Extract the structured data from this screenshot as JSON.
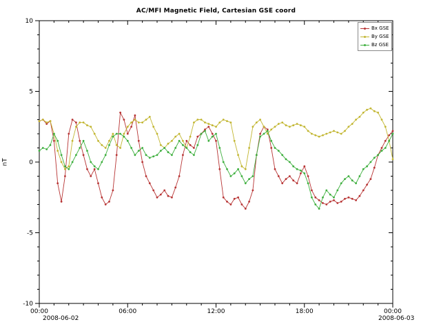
{
  "page": {
    "background": "#ffffff"
  },
  "chart_data": {
    "type": "line",
    "title": "AC/MFI  Magnetic Field, Cartesian GSE coord",
    "xlabel": "",
    "ylabel": "nT",
    "x_start_label": "2008-06-02",
    "x_end_label": "2008-06-03",
    "xlim": [
      0,
      24
    ],
    "ylim": [
      -10,
      10
    ],
    "grid": false,
    "legend_position": "top-right",
    "xticks": {
      "major_hours": [
        0,
        6,
        12,
        18,
        24
      ],
      "labels": [
        "00:00",
        "06:00",
        "12:00",
        "18:00",
        "00:00"
      ],
      "minor_every_hours": 1
    },
    "yticks": {
      "major": [
        -10,
        -5,
        0,
        5,
        10
      ],
      "minor_every": 1
    },
    "x_step_hours": 0.25,
    "series": [
      {
        "name": "Bx GSE",
        "color": "#b73333",
        "values": [
          2.9,
          3.0,
          2.7,
          2.9,
          1.5,
          -1.5,
          -2.8,
          -1.0,
          2.0,
          3.0,
          2.8,
          1.5,
          0.5,
          -0.5,
          -1.0,
          -0.5,
          -1.5,
          -2.5,
          -3.0,
          -2.8,
          -2.0,
          0.5,
          3.5,
          3.0,
          2.0,
          2.5,
          3.3,
          1.5,
          0.0,
          -1.0,
          -1.5,
          -2.0,
          -2.5,
          -2.3,
          -2.0,
          -2.4,
          -2.5,
          -1.8,
          -1.0,
          0.5,
          1.5,
          1.2,
          1.0,
          1.8,
          2.0,
          2.3,
          2.5,
          2.0,
          1.5,
          -0.5,
          -2.5,
          -2.8,
          -3.0,
          -2.6,
          -2.5,
          -3.0,
          -3.3,
          -2.8,
          -2.0,
          0.5,
          2.0,
          2.5,
          2.3,
          1.0,
          -0.5,
          -1.0,
          -1.5,
          -1.2,
          -1.0,
          -1.3,
          -1.5,
          -0.8,
          -0.3,
          -1.0,
          -2.0,
          -2.5,
          -2.7,
          -2.9,
          -3.0,
          -2.8,
          -2.7,
          -2.9,
          -2.8,
          -2.6,
          -2.5,
          -2.6,
          -2.7,
          -2.4,
          -2.0,
          -1.6,
          -1.2,
          -0.4,
          0.5,
          1.0,
          1.5,
          1.9,
          2.2
        ]
      },
      {
        "name": "By GSE",
        "color": "#c2b631",
        "values": [
          2.9,
          3.0,
          2.8,
          2.9,
          2.0,
          0.8,
          0.0,
          -0.5,
          -0.3,
          1.5,
          2.5,
          2.8,
          2.8,
          2.6,
          2.5,
          2.0,
          1.5,
          1.2,
          1.0,
          1.5,
          2.0,
          1.2,
          1.0,
          2.0,
          2.5,
          2.8,
          3.0,
          2.8,
          2.8,
          3.0,
          3.2,
          2.5,
          2.0,
          1.2,
          1.0,
          1.3,
          1.5,
          1.8,
          2.0,
          1.5,
          1.0,
          1.8,
          2.8,
          3.0,
          3.0,
          2.8,
          2.7,
          2.6,
          2.5,
          2.8,
          3.0,
          2.9,
          2.8,
          1.5,
          0.5,
          -0.3,
          -0.5,
          1.0,
          2.5,
          2.8,
          3.0,
          2.5,
          2.0,
          2.3,
          2.5,
          2.7,
          2.8,
          2.6,
          2.5,
          2.6,
          2.7,
          2.6,
          2.5,
          2.2,
          2.0,
          1.9,
          1.8,
          1.9,
          2.0,
          2.1,
          2.2,
          2.1,
          2.0,
          2.2,
          2.5,
          2.7,
          3.0,
          3.2,
          3.5,
          3.7,
          3.8,
          3.6,
          3.5,
          3.0,
          2.5,
          1.5,
          0.2
        ]
      },
      {
        "name": "Bz GSE",
        "color": "#3daf3d",
        "values": [
          0.8,
          1.0,
          0.9,
          1.2,
          2.0,
          1.5,
          0.5,
          -0.3,
          -0.5,
          0.0,
          0.5,
          1.0,
          1.5,
          0.8,
          0.0,
          -0.3,
          -0.5,
          0.0,
          0.5,
          1.2,
          1.8,
          2.0,
          2.0,
          1.8,
          1.5,
          1.0,
          0.5,
          0.8,
          1.0,
          0.5,
          0.3,
          0.4,
          0.5,
          0.8,
          1.0,
          0.7,
          0.5,
          1.0,
          1.5,
          1.2,
          1.0,
          0.7,
          0.5,
          1.2,
          2.0,
          2.2,
          1.5,
          1.8,
          2.0,
          1.0,
          0.0,
          -0.5,
          -1.0,
          -0.8,
          -0.5,
          -1.0,
          -1.5,
          -1.2,
          -1.0,
          0.5,
          1.8,
          2.0,
          2.2,
          1.5,
          1.0,
          0.8,
          0.5,
          0.2,
          0.0,
          -0.3,
          -0.5,
          -0.6,
          -0.8,
          -1.5,
          -2.5,
          -3.0,
          -3.3,
          -2.5,
          -2.0,
          -2.3,
          -2.5,
          -2.0,
          -1.5,
          -1.2,
          -1.0,
          -1.3,
          -1.5,
          -1.0,
          -0.5,
          -0.3,
          0.0,
          0.3,
          0.5,
          0.8,
          1.0,
          1.5,
          2.0
        ]
      }
    ]
  }
}
